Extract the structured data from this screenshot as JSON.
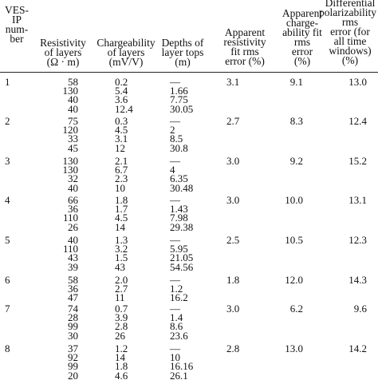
{
  "headers": [
    "VES-\nIP\nnum-\nber",
    "Resistivity\nof layers\n(Ω · m)",
    "Chargeability\nof layers\n(mV/V)",
    "Depths of\nlayer tops\n(m)",
    "Apparent\nresistivity\nfit rms\nerror (%)",
    "Apparent\ncharge-\nability fit\nrms\nerror\n(%)",
    "Differential\npolarizability fit\nrms\nerror (for\nall time\nwindows)\n(%)"
  ],
  "groups": [
    {
      "ves": "1",
      "resistivity": [
        "58",
        "130",
        "40",
        "40"
      ],
      "chargeability": [
        "0.2",
        "5.4",
        "3.6",
        "12.4"
      ],
      "depths": [
        "—",
        "1.66",
        "7.75",
        "30.05"
      ],
      "app_res_err": "3.1",
      "app_charge_err": "9.1",
      "diff_pol_err": "13.0"
    },
    {
      "ves": "2",
      "resistivity": [
        "75",
        "120",
        "33",
        "45"
      ],
      "chargeability": [
        "0.3",
        "4.5",
        "3.1",
        "12"
      ],
      "depths": [
        "—",
        "2",
        "8.5",
        "30.8"
      ],
      "app_res_err": "2.7",
      "app_charge_err": "8.3",
      "diff_pol_err": "12.4"
    },
    {
      "ves": "3",
      "resistivity": [
        "130",
        "130",
        "32",
        "40"
      ],
      "chargeability": [
        "2.1",
        "6.7",
        "2.3",
        "10"
      ],
      "depths": [
        "—",
        "4",
        "6.35",
        "30.48"
      ],
      "app_res_err": "3.0",
      "app_charge_err": "9.2",
      "diff_pol_err": "15.2"
    },
    {
      "ves": "4",
      "resistivity": [
        "66",
        "36",
        "110",
        "26"
      ],
      "chargeability": [
        "1.8",
        "1.7",
        "4.5",
        "14"
      ],
      "depths": [
        "—",
        "1.43",
        "7.98",
        "29.38"
      ],
      "app_res_err": "3.0",
      "app_charge_err": "10.0",
      "diff_pol_err": "13.1"
    },
    {
      "ves": "5",
      "resistivity": [
        "40",
        "110",
        "43",
        "39"
      ],
      "chargeability": [
        "1.3",
        "3.2",
        "1.5",
        "43"
      ],
      "depths": [
        "—",
        "5.95",
        "21.05",
        "54.56"
      ],
      "app_res_err": "2.5",
      "app_charge_err": "10.5",
      "diff_pol_err": "12.3"
    },
    {
      "ves": "6",
      "resistivity": [
        "58",
        "36",
        "47"
      ],
      "chargeability": [
        "2.0",
        "2.7",
        "11"
      ],
      "depths": [
        "—",
        "1.2",
        "16.2"
      ],
      "app_res_err": "1.8",
      "app_charge_err": "12.0",
      "diff_pol_err": "14.3"
    },
    {
      "ves": "7",
      "resistivity": [
        "74",
        "28",
        "99",
        "30"
      ],
      "chargeability": [
        "0.7",
        "3.9",
        "2.8",
        "26"
      ],
      "depths": [
        "—",
        "1.4",
        "8.6",
        "23.6"
      ],
      "app_res_err": "3.0",
      "app_charge_err": "6.2",
      "diff_pol_err": "9.6"
    },
    {
      "ves": "8",
      "resistivity": [
        "37",
        "92",
        "99",
        "20"
      ],
      "chargeability": [
        "1.2",
        "14",
        "1.8",
        "4.6"
      ],
      "depths": [
        "—",
        "10",
        "16.16",
        "26.1"
      ],
      "app_res_err": "2.8",
      "app_charge_err": "13.0",
      "diff_pol_err": "14.2"
    }
  ]
}
